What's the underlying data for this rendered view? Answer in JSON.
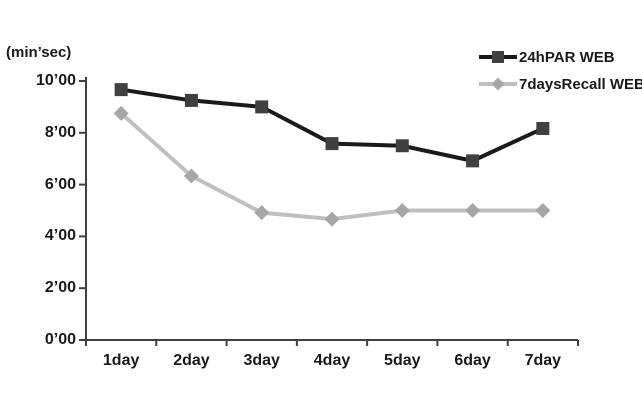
{
  "chart_data": {
    "type": "line",
    "title": "",
    "ylabel": "(min’sec)",
    "xlabel": "",
    "categories": [
      "1day",
      "2day",
      "3day",
      "4day",
      "5day",
      "6day",
      "7day"
    ],
    "y_ticks": [
      {
        "label": "10’00",
        "seconds": 600
      },
      {
        "label": "8’00",
        "seconds": 480
      },
      {
        "label": "6’00",
        "seconds": 360
      },
      {
        "label": "4’00",
        "seconds": 240
      },
      {
        "label": "2’00",
        "seconds": 120
      },
      {
        "label": "0’00",
        "seconds": 0
      }
    ],
    "ylim_seconds": [
      0,
      600
    ],
    "grid": false,
    "legend_position": "top-right",
    "axis_color": "#404040",
    "series": [
      {
        "name": "24hPAR WEB",
        "marker": "square",
        "line_color": "#1a1a1a",
        "marker_color": "#404040",
        "values_min_sec": [
          "9’40",
          "9’15",
          "9’00",
          "7’35",
          "7’30",
          "6’55",
          "8’10"
        ],
        "values_seconds": [
          580,
          555,
          540,
          455,
          450,
          415,
          490
        ]
      },
      {
        "name": "7daysRecall WEB",
        "marker": "diamond",
        "line_color": "#bfbfbf",
        "marker_color": "#a6a6a6",
        "values_min_sec": [
          "8’45",
          "6’20",
          "4’55",
          "4’40",
          "5’00",
          "5’00",
          "5’00"
        ],
        "values_seconds": [
          525,
          380,
          295,
          280,
          300,
          300,
          300
        ]
      }
    ]
  }
}
